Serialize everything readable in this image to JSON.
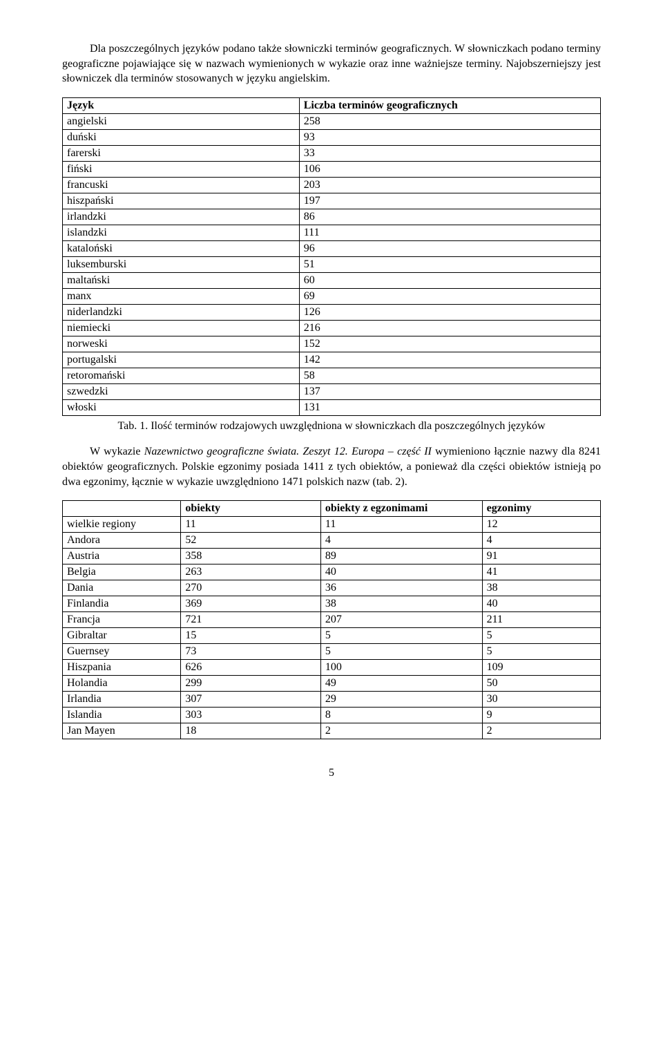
{
  "para1": "Dla poszczególnych języków podano także słowniczki terminów geograficznych. W słowniczkach podano terminy geograficzne pojawiające się w nazwach wymienionych w wykazie oraz inne ważniejsze terminy. Najobszerniejszy jest słowniczek dla terminów stosowanych w języku angielskim.",
  "table1": {
    "headers": [
      "Język",
      "Liczba terminów geograficznych"
    ],
    "rows": [
      [
        "angielski",
        "258"
      ],
      [
        "duński",
        "93"
      ],
      [
        "farerski",
        "33"
      ],
      [
        "fiński",
        "106"
      ],
      [
        "francuski",
        "203"
      ],
      [
        "hiszpański",
        "197"
      ],
      [
        "irlandzki",
        "86"
      ],
      [
        "islandzki",
        "111"
      ],
      [
        "kataloński",
        "96"
      ],
      [
        "luksemburski",
        "51"
      ],
      [
        "maltański",
        "60"
      ],
      [
        "manx",
        "69"
      ],
      [
        "niderlandzki",
        "126"
      ],
      [
        "niemiecki",
        "216"
      ],
      [
        "norweski",
        "152"
      ],
      [
        "portugalski",
        "142"
      ],
      [
        "retoromański",
        "58"
      ],
      [
        "szwedzki",
        "137"
      ],
      [
        "włoski",
        "131"
      ]
    ]
  },
  "caption1": "Tab. 1. Ilość terminów rodzajowych uwzględniona w słowniczkach dla poszczególnych języków",
  "para2_a": "W wykazie ",
  "para2_it": "Nazewnictwo geograficzne świata. Zeszyt 12. Europa – część II",
  "para2_b": " wymieniono łącznie nazwy dla 8241 obiektów geograficznych. Polskie egzonimy posiada 1411 z tych obiektów, a ponieważ dla części obiektów istnieją po dwa egzonimy, łącznie w wykazie uwzględniono 1471 polskich nazw (tab. 2).",
  "table2": {
    "headers": [
      "",
      "obiekty",
      "obiekty z egzonimami",
      "egzonimy"
    ],
    "rows": [
      [
        "wielkie regiony",
        "11",
        "11",
        "12"
      ],
      [
        "Andora",
        "52",
        "4",
        "4"
      ],
      [
        "Austria",
        "358",
        "89",
        "91"
      ],
      [
        "Belgia",
        "263",
        "40",
        "41"
      ],
      [
        "Dania",
        "270",
        "36",
        "38"
      ],
      [
        "Finlandia",
        "369",
        "38",
        "40"
      ],
      [
        "Francja",
        "721",
        "207",
        "211"
      ],
      [
        "Gibraltar",
        "15",
        "5",
        "5"
      ],
      [
        "Guernsey",
        "73",
        "5",
        "5"
      ],
      [
        "Hiszpania",
        "626",
        "100",
        "109"
      ],
      [
        "Holandia",
        "299",
        "49",
        "50"
      ],
      [
        "Irlandia",
        "307",
        "29",
        "30"
      ],
      [
        "Islandia",
        "303",
        "8",
        "9"
      ],
      [
        "Jan Mayen",
        "18",
        "2",
        "2"
      ]
    ]
  },
  "pagenum": "5"
}
